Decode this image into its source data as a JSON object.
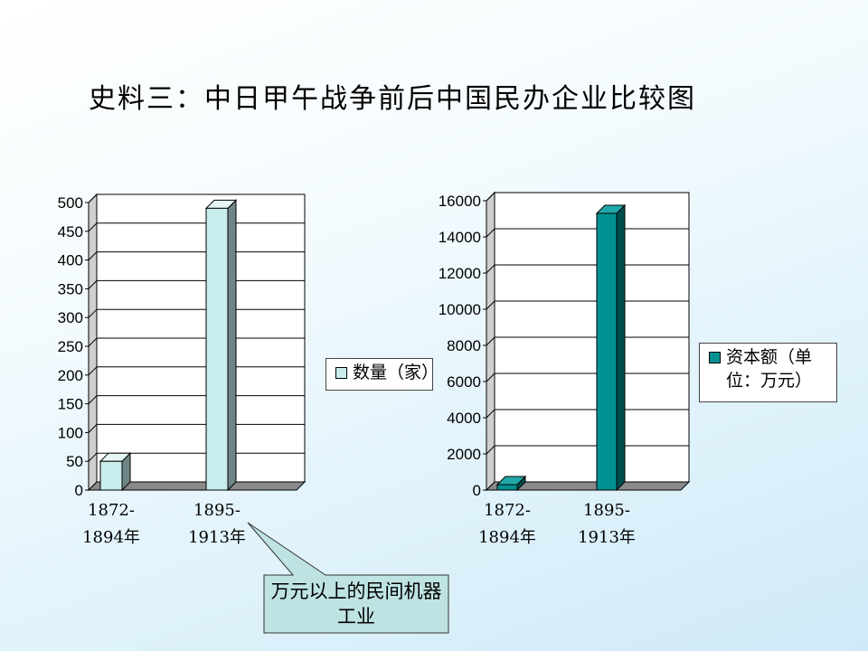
{
  "title": "史料三：中日甲午战争前后中国民办企业比较图",
  "chart_data": [
    {
      "type": "bar",
      "categories": [
        "1872-1894年",
        "1895-1913年"
      ],
      "category_lines": [
        [
          "1872-",
          "1894年"
        ],
        [
          "1895-",
          "1913年"
        ]
      ],
      "series": [
        {
          "name": "数量（家）",
          "values": [
            50,
            490
          ]
        }
      ],
      "ylim": [
        0,
        500
      ],
      "yticks": [
        "0",
        "50",
        "100",
        "150",
        "200",
        "250",
        "300",
        "350",
        "400",
        "450",
        "500"
      ],
      "grid": true,
      "legend": "right",
      "colors": {
        "face": "#c9ecec",
        "side": "#6f8585",
        "top": "#e4f6f6",
        "edge": "#000000"
      }
    },
    {
      "type": "bar",
      "categories": [
        "1872-1894年",
        "1895-1913年"
      ],
      "category_lines": [
        [
          "1872-",
          "1894年"
        ],
        [
          "1895-",
          "1913年"
        ]
      ],
      "series": [
        {
          "name": "资本额（单位：万元）",
          "values": [
            300,
            15300
          ]
        }
      ],
      "ylim": [
        0,
        16000
      ],
      "yticks": [
        "0",
        "2000",
        "4000",
        "6000",
        "8000",
        "10000",
        "12000",
        "14000",
        "16000"
      ],
      "grid": true,
      "legend": "right",
      "colors": {
        "face": "#009292",
        "side": "#004d4d",
        "top": "#20a8a8",
        "edge": "#000000"
      }
    }
  ],
  "legend_left": {
    "label": "数量（家）"
  },
  "legend_right": {
    "label": "资本额（单位：万元）"
  },
  "callout": {
    "text": "万元以上的民间机器工业",
    "fill": "#bfe3e3"
  }
}
